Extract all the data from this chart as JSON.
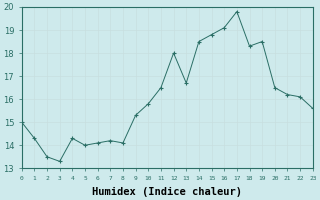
{
  "x": [
    0,
    1,
    2,
    3,
    4,
    5,
    6,
    7,
    8,
    9,
    10,
    11,
    12,
    13,
    14,
    15,
    16,
    17,
    18,
    19,
    20,
    21,
    22,
    23
  ],
  "y": [
    15.0,
    14.3,
    13.5,
    13.3,
    14.3,
    14.0,
    14.1,
    14.2,
    14.1,
    15.3,
    15.8,
    16.5,
    18.0,
    16.7,
    18.5,
    18.8,
    19.1,
    19.8,
    18.3,
    18.5,
    16.5,
    16.2,
    16.1,
    15.6
  ],
  "xlim": [
    0,
    23
  ],
  "ylim": [
    13,
    20
  ],
  "xtick_labels": [
    "0",
    "1",
    "2",
    "3",
    "4",
    "5",
    "6",
    "7",
    "8",
    "9",
    "10",
    "11",
    "12",
    "13",
    "14",
    "15",
    "16",
    "17",
    "18",
    "19",
    "20",
    "21",
    "22",
    "23"
  ],
  "yticks": [
    13,
    14,
    15,
    16,
    17,
    18,
    19,
    20
  ],
  "xlabel": "Humidex (Indice chaleur)",
  "line_color": "#2a6e65",
  "marker": "+",
  "bg_color": "#ceeaec",
  "grid_color": "#b8d8da",
  "axis_color": "#2a6e65"
}
